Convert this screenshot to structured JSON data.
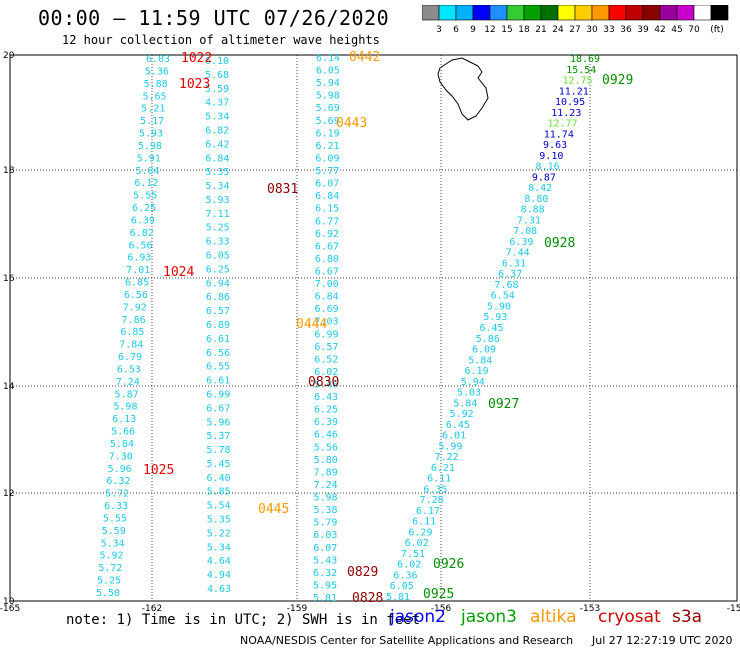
{
  "title": "00:00 – 11:59 UTC 07/26/2020",
  "subtitle": "12 hour collection of altimeter wave heights",
  "colorbar": {
    "colors": [
      "#8c8c8c",
      "#00e5ff",
      "#00b0ff",
      "#0000ff",
      "#1e90ff",
      "#33cc33",
      "#00a000",
      "#007000",
      "#ffff00",
      "#ffcc00",
      "#ff9900",
      "#ff0000",
      "#c00000",
      "#8b0000",
      "#990099",
      "#cc00cc",
      "#ffffff",
      "#000000"
    ],
    "labels": [
      "3",
      "6",
      "9",
      "12",
      "15",
      "18",
      "21",
      "24",
      "27",
      "30",
      "33",
      "36",
      "39",
      "42",
      "45",
      "70",
      "(ft)"
    ]
  },
  "axes": {
    "x_ticks": [
      "-165",
      "-162",
      "-159",
      "-156",
      "-153",
      "-150"
    ],
    "y_ticks": [
      "20",
      "18",
      "16",
      "14",
      "12",
      "10"
    ]
  },
  "note": "note: 1) Time is in UTC; 2) SWH is in feet",
  "satellites": [
    {
      "name": "jason2",
      "color": "#0000ff"
    },
    {
      "name": "jason3",
      "color": "#00a000"
    },
    {
      "name": "altika",
      "color": "#ff9900"
    },
    {
      "name": "cryosat",
      "color": "#cc0000"
    },
    {
      "name": "s3a",
      "color": "#8b0000"
    }
  ],
  "credit": "NOAA/NESDIS Center for Satellite Applications and Research",
  "timestamp": "Jul 27 12:27:19 UTC 2020",
  "colors": {
    "cyan": "#1ec8e6",
    "red": "#e60000",
    "orange": "#ff9900",
    "darkred": "#8b0000",
    "green": "#008c00",
    "blue": "#0000c8",
    "light_green": "#66dd33"
  },
  "tracks": {
    "track_a": {
      "label_color": "cyan",
      "values": [
        "6.03",
        "5.36",
        "5.88",
        "5.65",
        "5.21",
        "5.17",
        "5.93",
        "5.98",
        "5.91",
        "5.84",
        "6.12",
        "5.55",
        "6.25",
        "6.39",
        "6.82",
        "6.56",
        "6.93",
        "7.01",
        "6.85",
        "6.56",
        "7.92",
        "7.86",
        "6.85",
        "7.84",
        "6.79",
        "6.53",
        "7.24",
        "5.87",
        "5.98",
        "6.13",
        "5.66",
        "5.84",
        "7.30",
        "5.96",
        "6.32",
        "5.72",
        "6.33",
        "5.55",
        "5.59",
        "5.34",
        "5.92",
        "5.72",
        "5.25",
        "5.50"
      ]
    },
    "track_b": {
      "values": [
        "6.10",
        "5.68",
        "5.59",
        "4.37",
        "5.34",
        "6.82",
        "6.42",
        "6.84",
        "5.35",
        "5.34",
        "5.93",
        "7.11",
        "5.25",
        "6.33",
        "6.05",
        "6.25",
        "6.94",
        "6.86",
        "6.57",
        "6.89",
        "6.61",
        "6.56",
        "6.55",
        "6.61",
        "6.99",
        "6.67",
        "5.96",
        "5.37",
        "5.78",
        "5.45",
        "6.40",
        "5.85",
        "5.54",
        "5.35",
        "5.22",
        "5.34",
        "4.64",
        "4.94",
        "4.63"
      ]
    },
    "track_c": {
      "values": [
        "6.14",
        "6.05",
        "5.94",
        "5.98",
        "5.69",
        "5.69",
        "6.19",
        "6.21",
        "6.09",
        "5.77",
        "6.07",
        "6.84",
        "6.15",
        "6.77",
        "6.92",
        "6.67",
        "6.80",
        "6.67",
        "7.00",
        "6.84",
        "6.69",
        "7.03",
        "6.99",
        "6.57",
        "6.52",
        "6.02",
        "5.46",
        "6.43",
        "6.25",
        "6.39",
        "6.46",
        "5.56",
        "5.80",
        "7.89",
        "7.24",
        "5.98",
        "5.38",
        "5.79",
        "6.03",
        "6.07",
        "5.43",
        "6.32",
        "5.95",
        "5.81"
      ]
    },
    "track_d": {
      "values": [
        "18.69",
        "15.54",
        "12.75",
        "11.21",
        "10.95",
        "11.23",
        "12.77",
        "11.74",
        "9.63",
        "9.10",
        "8.16",
        "9.87",
        "8.42",
        "8.80",
        "8.88",
        "7.31",
        "7.08",
        "6.39",
        "7.44",
        "6.31",
        "6.37",
        "7.68",
        "6.54",
        "5.90",
        "5.93",
        "6.45",
        "5.86",
        "6.09",
        "5.84",
        "6.19",
        "5.94",
        "5.03",
        "5.84",
        "5.92",
        "6.45",
        "6.01",
        "5.99",
        "7.22",
        "6.21",
        "6.11",
        "6.35",
        "7.28",
        "6.17",
        "6.11",
        "6.29",
        "6.02",
        "7.51",
        "6.02",
        "6.36",
        "6.05",
        "5.81"
      ],
      "colors": [
        "green",
        "green",
        "light_green",
        "blue",
        "blue",
        "blue",
        "light_green",
        "blue",
        "blue",
        "blue",
        "cyan",
        "blue",
        "cyan",
        "cyan",
        "cyan",
        "cyan",
        "cyan",
        "cyan",
        "cyan",
        "cyan",
        "cyan",
        "cyan",
        "cyan",
        "cyan",
        "cyan",
        "cyan",
        "cyan",
        "cyan",
        "cyan",
        "cyan",
        "cyan",
        "cyan",
        "cyan",
        "cyan",
        "cyan",
        "cyan",
        "cyan",
        "cyan",
        "cyan",
        "cyan",
        "cyan",
        "cyan",
        "cyan",
        "cyan",
        "cyan",
        "cyan",
        "cyan",
        "cyan",
        "cyan",
        "cyan",
        "cyan"
      ]
    }
  },
  "pass_labels": [
    {
      "text": "1022",
      "color": "red"
    },
    {
      "text": "1023",
      "color": "red"
    },
    {
      "text": "1024",
      "color": "red"
    },
    {
      "text": "1025",
      "color": "red"
    },
    {
      "text": "0442",
      "color": "orange"
    },
    {
      "text": "0443",
      "color": "orange"
    },
    {
      "text": "0444",
      "color": "orange"
    },
    {
      "text": "0445",
      "color": "orange"
    },
    {
      "text": "0831",
      "color": "darkred"
    },
    {
      "text": "0830",
      "color": "darkred"
    },
    {
      "text": "0829",
      "color": "darkred"
    },
    {
      "text": "0828",
      "color": "darkred"
    },
    {
      "text": "0929",
      "color": "green"
    },
    {
      "text": "0928",
      "color": "green"
    },
    {
      "text": "0927",
      "color": "green"
    },
    {
      "text": "0926",
      "color": "green"
    },
    {
      "text": "0925",
      "color": "green"
    }
  ]
}
